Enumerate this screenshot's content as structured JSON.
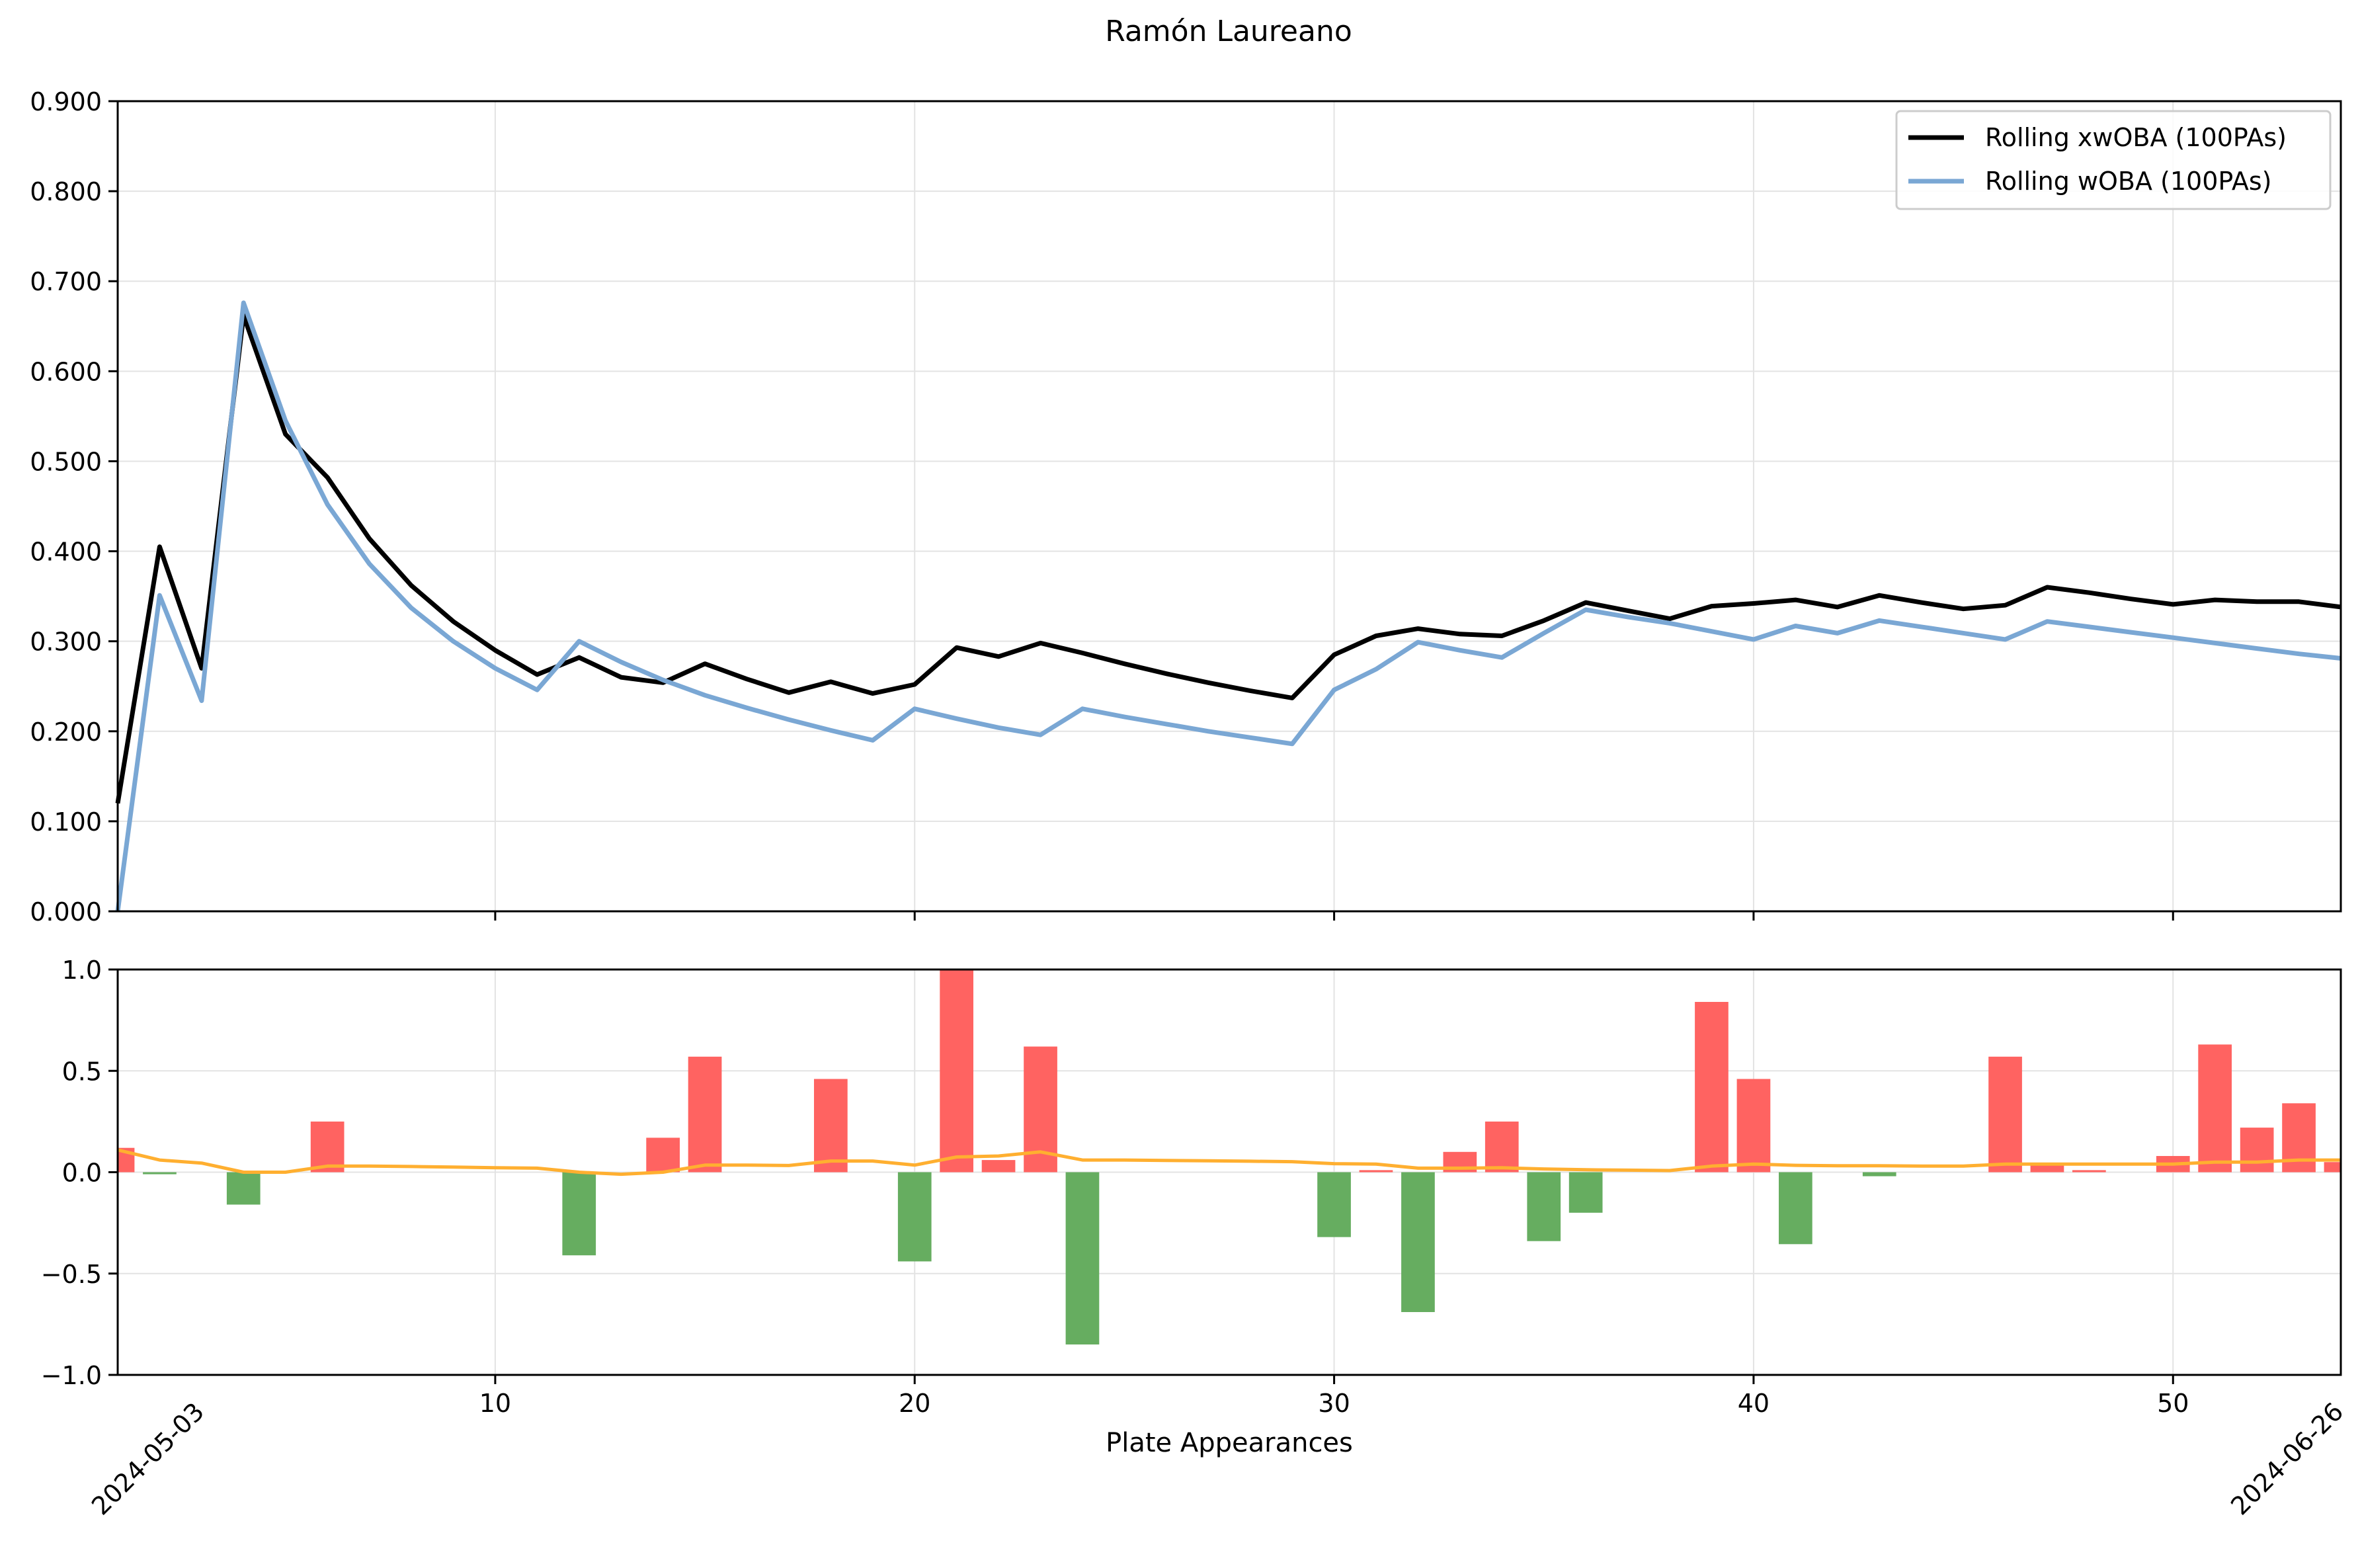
{
  "title": "Ramón Laureano",
  "chart_data": [
    {
      "type": "line",
      "title": "Ramón Laureano",
      "xlabel": "",
      "ylabel": "",
      "xlim": [
        1,
        54
      ],
      "ylim": [
        0,
        0.9
      ],
      "grid": true,
      "legend": "top-right",
      "yticks": [
        "0.000",
        "0.100",
        "0.200",
        "0.300",
        "0.400",
        "0.500",
        "0.600",
        "0.700",
        "0.800",
        "0.900"
      ],
      "ytick_values": [
        0,
        0.1,
        0.2,
        0.3,
        0.4,
        0.5,
        0.6,
        0.7,
        0.8,
        0.9
      ],
      "xtick_values": [
        10,
        20,
        30,
        40,
        50
      ],
      "series": [
        {
          "name": "Rolling xwOBA (100PAs)",
          "color": "#000000",
          "x": [
            1,
            2,
            3,
            4,
            5,
            6,
            7,
            8,
            9,
            10,
            11,
            12,
            13,
            14,
            15,
            16,
            17,
            18,
            19,
            20,
            21,
            22,
            23,
            24,
            25,
            26,
            27,
            28,
            29,
            30,
            31,
            32,
            33,
            34,
            35,
            36,
            37,
            38,
            39,
            40,
            41,
            42,
            43,
            44,
            45,
            46,
            47,
            48,
            49,
            50,
            51,
            52,
            53,
            54
          ],
          "values": [
            0.12,
            0.405,
            0.27,
            0.662,
            0.53,
            0.482,
            0.414,
            0.362,
            0.322,
            0.29,
            0.263,
            0.282,
            0.26,
            0.254,
            0.275,
            0.258,
            0.243,
            0.255,
            0.242,
            0.252,
            0.293,
            0.283,
            0.298,
            0.287,
            0.275,
            0.264,
            0.254,
            0.245,
            0.237,
            0.285,
            0.306,
            0.314,
            0.308,
            0.306,
            0.323,
            0.343,
            0.334,
            0.325,
            0.339,
            0.342,
            0.346,
            0.338,
            0.351,
            0.343,
            0.336,
            0.34,
            0.36,
            0.354,
            0.347,
            0.341,
            0.346,
            0.344,
            0.344,
            0.338
          ]
        },
        {
          "name": "Rolling wOBA (100PAs)",
          "color": "#7aa7d4",
          "x": [
            1,
            2,
            3,
            4,
            5,
            6,
            7,
            8,
            9,
            10,
            11,
            12,
            13,
            14,
            15,
            16,
            17,
            18,
            19,
            20,
            21,
            22,
            23,
            24,
            25,
            26,
            27,
            28,
            29,
            30,
            31,
            32,
            33,
            34,
            35,
            36,
            37,
            38,
            39,
            40,
            41,
            42,
            43,
            44,
            45,
            46,
            47,
            48,
            49,
            50,
            51,
            52,
            53,
            54
          ],
          "values": [
            0.0,
            0.351,
            0.234,
            0.676,
            0.545,
            0.452,
            0.386,
            0.337,
            0.3,
            0.27,
            0.246,
            0.3,
            0.277,
            0.257,
            0.24,
            0.226,
            0.213,
            0.201,
            0.19,
            0.225,
            0.214,
            0.204,
            0.196,
            0.225,
            0.216,
            0.208,
            0.2,
            0.193,
            0.186,
            0.246,
            0.269,
            0.299,
            0.29,
            0.282,
            0.309,
            0.335,
            0.327,
            0.32,
            0.311,
            0.302,
            0.317,
            0.309,
            0.323,
            0.316,
            0.309,
            0.302,
            0.322,
            0.316,
            0.31,
            0.304,
            0.298,
            0.292,
            0.286,
            0.281
          ]
        }
      ]
    },
    {
      "type": "bar",
      "xlabel": "Plate Appearances",
      "ylabel": "",
      "xlim": [
        1,
        54
      ],
      "ylim": [
        -1,
        1
      ],
      "grid": true,
      "yticks": [
        "−1.0",
        "−0.5",
        "0.0",
        "0.5",
        "1.0"
      ],
      "ytick_values": [
        -1,
        -0.5,
        0,
        0.5,
        1
      ],
      "xticks": [
        "10",
        "20",
        "30",
        "40",
        "50"
      ],
      "xtick_values": [
        10,
        20,
        30,
        40,
        50
      ],
      "date_labels": [
        {
          "x": 3,
          "text": "2024-05-03"
        },
        {
          "x": 54,
          "text": "2024-06-26"
        }
      ],
      "positive_color": "#ff6361",
      "negative_color": "#66ad60",
      "trend_color": "#ffaf30",
      "x": [
        1,
        2,
        3,
        4,
        5,
        6,
        7,
        8,
        9,
        10,
        11,
        12,
        13,
        14,
        15,
        16,
        17,
        18,
        19,
        20,
        21,
        22,
        23,
        24,
        25,
        26,
        27,
        28,
        29,
        30,
        31,
        32,
        33,
        34,
        35,
        36,
        37,
        38,
        39,
        40,
        41,
        42,
        43,
        44,
        45,
        46,
        47,
        48,
        49,
        50,
        51,
        52,
        53,
        54
      ],
      "values": [
        0.12,
        -0.01,
        0,
        -0.16,
        0,
        0.25,
        0,
        0,
        0,
        0,
        0,
        -0.41,
        0,
        0.17,
        0.57,
        0,
        0,
        0.46,
        0,
        -0.44,
        1.0,
        0.06,
        0.62,
        -0.85,
        0,
        0,
        0,
        0,
        0,
        -0.32,
        0.01,
        -0.69,
        0.1,
        0.25,
        -0.34,
        -0.2,
        0,
        0,
        0.84,
        0.46,
        -0.355,
        0,
        -0.02,
        0,
        0,
        0.57,
        0.04,
        0.01,
        0,
        0.08,
        0.63,
        0.22,
        0.34,
        0.05
      ],
      "trend": [
        0.11,
        0.06,
        0.045,
        0.0,
        0.0,
        0.03,
        0.03,
        0.028,
        0.025,
        0.022,
        0.02,
        0.0,
        -0.01,
        0.0,
        0.035,
        0.035,
        0.033,
        0.055,
        0.055,
        0.035,
        0.075,
        0.08,
        0.1,
        0.06,
        0.06,
        0.058,
        0.056,
        0.054,
        0.052,
        0.042,
        0.04,
        0.02,
        0.02,
        0.022,
        0.016,
        0.012,
        0.01,
        0.008,
        0.03,
        0.04,
        0.034,
        0.032,
        0.032,
        0.03,
        0.03,
        0.04,
        0.04,
        0.04,
        0.04,
        0.04,
        0.05,
        0.05,
        0.06,
        0.06
      ]
    }
  ]
}
